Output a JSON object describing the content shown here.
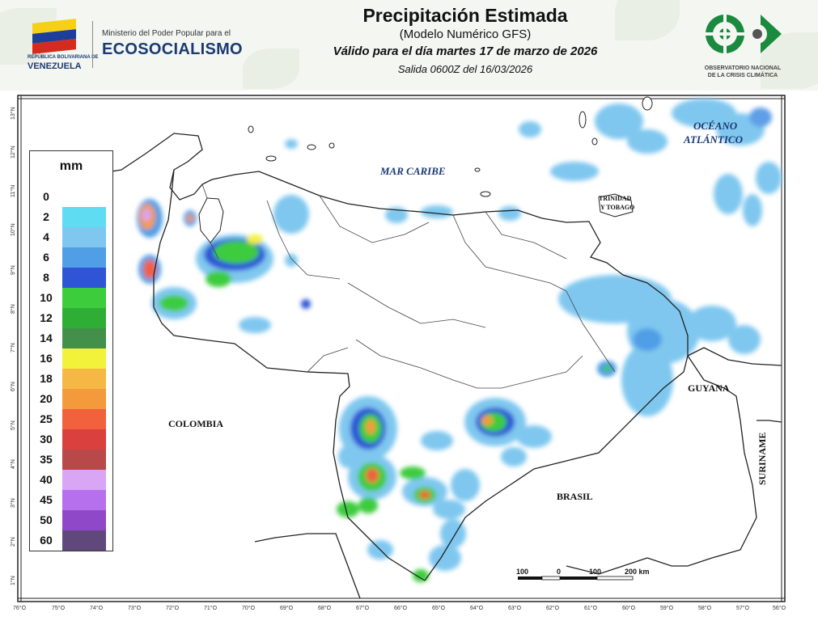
{
  "header": {
    "ministry_line": "Ministerio del Poder Popular para el",
    "ministry_name": "ECOSOCIALISMO",
    "gov_small": "REPÚBLICA BOLIVARIANA DE",
    "gov_country": "VENEZUELA",
    "title": "Precipitación Estimada",
    "model": "(Modelo Numérico GFS)",
    "valid": "Válido para el día martes 17 de marzo de 2026",
    "run": "Salida 0600Z del 16/03/2026",
    "observatory_line1": "OBSERVATORIO NACIONAL",
    "observatory_line2": "DE LA CRISIS CLIMÁTICA"
  },
  "legend": {
    "unit": "mm",
    "entries": [
      {
        "label": "0",
        "color": "#ffffff"
      },
      {
        "label": "2",
        "color": "#5fdcf2"
      },
      {
        "label": "4",
        "color": "#7fc7ef"
      },
      {
        "label": "6",
        "color": "#4f9ee6"
      },
      {
        "label": "8",
        "color": "#2f55d6"
      },
      {
        "label": "10",
        "color": "#3ccc3c"
      },
      {
        "label": "12",
        "color": "#2fae36"
      },
      {
        "label": "14",
        "color": "#43904a"
      },
      {
        "label": "16",
        "color": "#f2f23a"
      },
      {
        "label": "18",
        "color": "#f5b844"
      },
      {
        "label": "20",
        "color": "#f59a3c"
      },
      {
        "label": "25",
        "color": "#f0613c"
      },
      {
        "label": "30",
        "color": "#d9403e"
      },
      {
        "label": "35",
        "color": "#b94848"
      },
      {
        "label": "40",
        "color": "#d8a6f5"
      },
      {
        "label": "45",
        "color": "#b670ee"
      },
      {
        "label": "50",
        "color": "#8f48c8"
      },
      {
        "label": "60",
        "color": "#61487c"
      }
    ]
  },
  "labels": {
    "mar_caribe": "MAR CARIBE",
    "oceano": "OCÉANO",
    "atlantico": "ATLÁNTICO",
    "trinidad": "TRINIDAD",
    "tobago": "Y TOBAGO",
    "colombia": "COLOMBIA",
    "guyana": "GUYANA",
    "brasil": "BRASIL",
    "suriname": "SURINAME"
  },
  "scale": {
    "t100a": "100",
    "t0": "0",
    "t100b": "100",
    "t200": "200 km"
  },
  "axes": {
    "lon": [
      "76°O",
      "75°O",
      "74°O",
      "73°O",
      "72°O",
      "71°O",
      "70°O",
      "69°O",
      "68°O",
      "67°O",
      "66°O",
      "65°O",
      "64°O",
      "63°O",
      "62°O",
      "61°O",
      "60°O",
      "59°O",
      "58°O",
      "57°O",
      "56°O"
    ],
    "lat": [
      "13°N",
      "12°N",
      "11°N",
      "10°N",
      "9°N",
      "8°N",
      "7°N",
      "6°N",
      "5°N",
      "4°N",
      "3°N",
      "2°N",
      "1°N"
    ]
  }
}
